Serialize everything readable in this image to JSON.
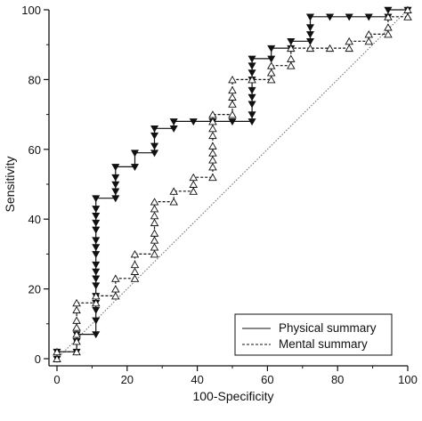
{
  "chart_data": {
    "type": "line",
    "title": "",
    "xlabel": "100-Specificity",
    "ylabel": "Sensitivity",
    "xlim": [
      0,
      100
    ],
    "ylim": [
      0,
      100
    ],
    "x_ticks": [
      "0",
      "20",
      "40",
      "60",
      "80",
      "100"
    ],
    "y_ticks": [
      "0",
      "20",
      "40",
      "60",
      "80",
      "100"
    ],
    "grid": false,
    "legend_position": "bottom-right",
    "reference_line": {
      "style": "dotted",
      "from": [
        0,
        0
      ],
      "to": [
        100,
        100
      ]
    },
    "series": [
      {
        "name": "Physical summary",
        "line_style": "solid",
        "marker": "filled-down-triangle",
        "color": "#111111",
        "points": [
          [
            0,
            0
          ],
          [
            0,
            2
          ],
          [
            5.6,
            2
          ],
          [
            5.6,
            5
          ],
          [
            5.6,
            7
          ],
          [
            11.1,
            7
          ],
          [
            11.1,
            11
          ],
          [
            11.1,
            14
          ],
          [
            11.1,
            16
          ],
          [
            11.1,
            18
          ],
          [
            11.1,
            21
          ],
          [
            11.1,
            23
          ],
          [
            11.1,
            25
          ],
          [
            11.1,
            27
          ],
          [
            11.1,
            30
          ],
          [
            11.1,
            32
          ],
          [
            11.1,
            34
          ],
          [
            11.1,
            37
          ],
          [
            11.1,
            39
          ],
          [
            11.1,
            41
          ],
          [
            11.1,
            43
          ],
          [
            11.1,
            46
          ],
          [
            16.7,
            46
          ],
          [
            16.7,
            48
          ],
          [
            16.7,
            50
          ],
          [
            16.7,
            52
          ],
          [
            16.7,
            55
          ],
          [
            22.2,
            55
          ],
          [
            22.2,
            59
          ],
          [
            27.8,
            59
          ],
          [
            27.8,
            61
          ],
          [
            27.8,
            64
          ],
          [
            27.8,
            66
          ],
          [
            33.3,
            66
          ],
          [
            33.3,
            68
          ],
          [
            38.9,
            68
          ],
          [
            44.4,
            68
          ],
          [
            50,
            68
          ],
          [
            55.6,
            68
          ],
          [
            55.6,
            70
          ],
          [
            55.6,
            73
          ],
          [
            55.6,
            75
          ],
          [
            55.6,
            77
          ],
          [
            55.6,
            80
          ],
          [
            55.6,
            82
          ],
          [
            55.6,
            84
          ],
          [
            55.6,
            86
          ],
          [
            61.1,
            86
          ],
          [
            61.1,
            89
          ],
          [
            66.7,
            89
          ],
          [
            66.7,
            91
          ],
          [
            72.2,
            91
          ],
          [
            72.2,
            93
          ],
          [
            72.2,
            95
          ],
          [
            72.2,
            98
          ],
          [
            77.8,
            98
          ],
          [
            83.3,
            98
          ],
          [
            88.9,
            98
          ],
          [
            94.4,
            98
          ],
          [
            94.4,
            100
          ],
          [
            100,
            100
          ]
        ]
      },
      {
        "name": "Mental summary",
        "line_style": "dashed",
        "marker": "open-up-triangle",
        "color": "#111111",
        "points": [
          [
            0,
            0
          ],
          [
            0,
            2
          ],
          [
            5.6,
            2
          ],
          [
            5.6,
            5
          ],
          [
            5.6,
            7
          ],
          [
            5.6,
            9
          ],
          [
            5.6,
            11
          ],
          [
            5.6,
            14
          ],
          [
            5.6,
            16
          ],
          [
            11.1,
            16
          ],
          [
            11.1,
            18
          ],
          [
            16.7,
            18
          ],
          [
            16.7,
            20
          ],
          [
            16.7,
            23
          ],
          [
            22.2,
            23
          ],
          [
            22.2,
            25
          ],
          [
            22.2,
            27
          ],
          [
            22.2,
            30
          ],
          [
            27.8,
            30
          ],
          [
            27.8,
            32
          ],
          [
            27.8,
            34
          ],
          [
            27.8,
            36
          ],
          [
            27.8,
            39
          ],
          [
            27.8,
            41
          ],
          [
            27.8,
            43
          ],
          [
            27.8,
            45
          ],
          [
            33.3,
            45
          ],
          [
            33.3,
            48
          ],
          [
            38.9,
            48
          ],
          [
            38.9,
            50
          ],
          [
            38.9,
            52
          ],
          [
            44.4,
            52
          ],
          [
            44.4,
            55
          ],
          [
            44.4,
            57
          ],
          [
            44.4,
            59
          ],
          [
            44.4,
            61
          ],
          [
            44.4,
            64
          ],
          [
            44.4,
            66
          ],
          [
            44.4,
            68
          ],
          [
            44.4,
            70
          ],
          [
            50,
            70
          ],
          [
            50,
            73
          ],
          [
            50,
            75
          ],
          [
            50,
            77
          ],
          [
            50,
            80
          ],
          [
            55.6,
            80
          ],
          [
            61.1,
            80
          ],
          [
            61.1,
            82
          ],
          [
            61.1,
            84
          ],
          [
            66.7,
            84
          ],
          [
            66.7,
            86
          ],
          [
            66.7,
            89
          ],
          [
            72.2,
            89
          ],
          [
            77.8,
            89
          ],
          [
            83.3,
            89
          ],
          [
            83.3,
            91
          ],
          [
            88.9,
            91
          ],
          [
            88.9,
            93
          ],
          [
            94.4,
            93
          ],
          [
            94.4,
            95
          ],
          [
            94.4,
            98
          ],
          [
            100,
            98
          ],
          [
            100,
            100
          ]
        ]
      }
    ]
  }
}
